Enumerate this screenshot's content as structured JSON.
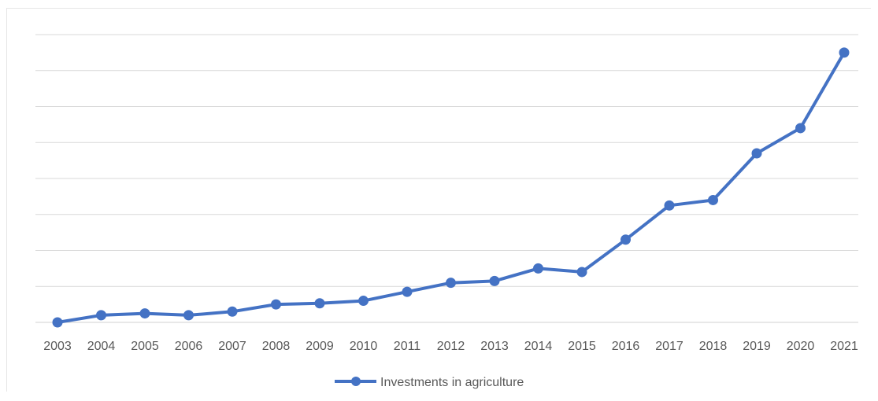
{
  "chart_data": {
    "type": "line",
    "title": "",
    "xlabel": "",
    "ylabel": "",
    "categories": [
      "2003",
      "2004",
      "2005",
      "2006",
      "2007",
      "2008",
      "2009",
      "2010",
      "2011",
      "2012",
      "2013",
      "2014",
      "2015",
      "2016",
      "2017",
      "2018",
      "2019",
      "2020",
      "2021"
    ],
    "series": [
      {
        "name": "Investments in agriculture",
        "color": "#4472C4",
        "values": [
          0,
          2,
          2.5,
          2,
          3,
          5,
          5.3,
          6,
          8.5,
          11,
          11.5,
          15,
          14,
          23,
          32.5,
          34,
          47,
          54,
          75
        ]
      }
    ],
    "ylim": [
      0,
      80
    ],
    "y_tick_labels_shown": false,
    "grid": true,
    "legend_position": "bottom"
  }
}
